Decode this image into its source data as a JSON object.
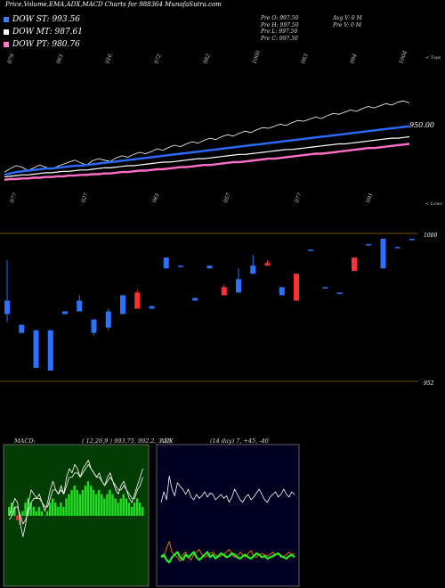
{
  "header": {
    "title": "Price,Volume,EMA,ADX,MACD Charts for 988364  MunafaSutra.com"
  },
  "legend": [
    {
      "label": "DOW ST: 993.56",
      "color": "#3b7dff"
    },
    {
      "label": "DOW MT: 987.61",
      "color": "#ffffff"
    },
    {
      "label": "DOW PT: 980.76",
      "color": "#ff77cc"
    }
  ],
  "ohlc": [
    "Pre  O: 997.50",
    "Pre  H: 997.50",
    "Pre  L: 997.50",
    "Pre  C: 997.50"
  ],
  "avg": [
    "Avg V: 0  M",
    "Pre  V: 0  M"
  ],
  "colors": {
    "up": "#2a72ff",
    "down": "#ff3030",
    "ema_st": "#2a6bff",
    "ema_pt": "#ff6fc8",
    "grid": "#6b5200"
  },
  "chart_data": [
    {
      "type": "line",
      "panel": "price-ema",
      "title": "",
      "top_tick_labels": [
        "979",
        "961",
        "916",
        "972",
        "982",
        "1000",
        "983",
        "994",
        "1004"
      ],
      "bottom_tick_labels": [
        "977",
        "927",
        "961",
        "957",
        "977",
        "991"
      ],
      "right_labels": {
        "top": "< Tops",
        "bottom": "< Lows",
        "level": "950.00"
      },
      "series": [
        {
          "name": "",
          "values": [
            910,
            915,
            919,
            917,
            912,
            916,
            920,
            917,
            914,
            918,
            921,
            924,
            927,
            923,
            920,
            926,
            929,
            927,
            925,
            930,
            933,
            931,
            935,
            938,
            936,
            939,
            943,
            941,
            945,
            948,
            946,
            950,
            953,
            951,
            955,
            958,
            956,
            960,
            963,
            961,
            965,
            968,
            966,
            970,
            973,
            972,
            975,
            978,
            976,
            980,
            983,
            982,
            985,
            988,
            986,
            990,
            993,
            992,
            995,
            998,
            996,
            1000,
            1003,
            1001,
            1004,
            1007,
            1005,
            1009,
            1011,
            1008
          ]
        },
        {
          "name": "DOW ST",
          "values": [
            906,
            908,
            910,
            911,
            912,
            913,
            914,
            915,
            915,
            916,
            917,
            918,
            919,
            919,
            920,
            921,
            922,
            923,
            924,
            925,
            926,
            927,
            928,
            929,
            930,
            931,
            932,
            933,
            934,
            935,
            936,
            937,
            938,
            939,
            940,
            941,
            942,
            943,
            944,
            945,
            946,
            947,
            948,
            949,
            950,
            951,
            952,
            953,
            954,
            955,
            956,
            957,
            958,
            959,
            960,
            961,
            962,
            963,
            964,
            965,
            966,
            967,
            968,
            969,
            970,
            971,
            972,
            973,
            974,
            975
          ]
        },
        {
          "name": "DOW MT",
          "values": [
            903,
            904,
            905,
            906,
            906,
            907,
            908,
            909,
            909,
            910,
            911,
            911,
            912,
            913,
            913,
            914,
            915,
            916,
            916,
            917,
            918,
            919,
            919,
            920,
            921,
            922,
            923,
            924,
            924,
            925,
            926,
            927,
            928,
            929,
            929,
            930,
            931,
            932,
            933,
            934,
            935,
            935,
            936,
            937,
            938,
            939,
            940,
            941,
            942,
            942,
            943,
            944,
            945,
            946,
            947,
            948,
            949,
            950,
            950,
            951,
            952,
            953,
            954,
            955,
            956,
            957,
            958,
            958,
            959,
            960
          ]
        },
        {
          "name": "DOW PT",
          "values": [
            899,
            900,
            900,
            901,
            901,
            902,
            902,
            903,
            903,
            904,
            904,
            905,
            905,
            906,
            906,
            907,
            907,
            908,
            908,
            909,
            910,
            910,
            911,
            912,
            912,
            913,
            914,
            914,
            915,
            916,
            917,
            917,
            918,
            919,
            920,
            920,
            921,
            922,
            923,
            924,
            924,
            925,
            926,
            927,
            928,
            929,
            929,
            930,
            931,
            932,
            933,
            934,
            935,
            936,
            936,
            937,
            938,
            939,
            940,
            941,
            942,
            943,
            944,
            944,
            945,
            946,
            947,
            948,
            949,
            950
          ]
        }
      ]
    },
    {
      "type": "bar",
      "panel": "candles",
      "right_labels": [
        "1000",
        "952"
      ],
      "candles": [
        {
          "open": 980,
          "close": 975,
          "high": 995,
          "low": 972
        },
        {
          "open": 971,
          "close": 968,
          "high": 971,
          "low": 968
        },
        {
          "open": 969,
          "close": 955,
          "high": 969,
          "low": 955
        },
        {
          "open": 969,
          "close": 954,
          "high": 969,
          "low": 954
        },
        {
          "open": 975,
          "close": 976,
          "high": 976,
          "low": 975
        },
        {
          "open": 980,
          "close": 976,
          "high": 982,
          "low": 976
        },
        {
          "open": 973,
          "close": 968,
          "high": 973,
          "low": 967
        },
        {
          "open": 976,
          "close": 970,
          "high": 977,
          "low": 969
        },
        {
          "open": 975,
          "close": 982,
          "high": 982,
          "low": 975
        },
        {
          "open": 983,
          "close": 977,
          "high": 984,
          "low": 977
        },
        {
          "open": 978,
          "close": 977,
          "high": 978,
          "low": 977
        },
        {
          "open": 996,
          "close": 992,
          "high": 996,
          "low": 992
        },
        {
          "open": 993,
          "close": 993,
          "high": 993,
          "low": 993
        },
        {
          "open": 981,
          "close": 980,
          "high": 981,
          "low": 980
        },
        {
          "open": 993,
          "close": 992,
          "high": 993,
          "low": 992
        },
        {
          "open": 985,
          "close": 982,
          "high": 986,
          "low": 982
        },
        {
          "open": 988,
          "close": 983,
          "high": 992,
          "low": 983
        },
        {
          "open": 990,
          "close": 993,
          "high": 997,
          "low": 990
        },
        {
          "open": 993,
          "close": 994,
          "high": 995,
          "low": 993
        },
        {
          "open": 985,
          "close": 982,
          "high": 985,
          "low": 982
        },
        {
          "open": 990,
          "close": 980,
          "high": 990,
          "low": 980
        },
        {
          "open": 999,
          "close": 999,
          "high": 999,
          "low": 999
        },
        {
          "open": 985,
          "close": 985,
          "high": 985,
          "low": 985
        },
        {
          "open": 983,
          "close": 983,
          "high": 983,
          "low": 983
        },
        {
          "open": 996,
          "close": 991,
          "high": 996,
          "low": 991
        },
        {
          "open": 1001,
          "close": 1001,
          "high": 1001,
          "low": 1001
        },
        {
          "open": 1003,
          "close": 992,
          "high": 1003,
          "low": 992
        },
        {
          "open": 1000,
          "close": 1000,
          "high": 1000,
          "low": 1000
        },
        {
          "open": 1003,
          "close": 1003,
          "high": 1003,
          "low": 1003
        }
      ],
      "candle_colors": [
        "up",
        "up",
        "up",
        "up",
        "up",
        "up",
        "up",
        "up",
        "up",
        "down",
        "up",
        "up",
        "up",
        "up",
        "up",
        "down",
        "up",
        "up",
        "down",
        "up",
        "down",
        "up",
        "up",
        "up",
        "down",
        "up",
        "up",
        "up",
        "up"
      ],
      "ylim": [
        950,
        1005
      ]
    },
    {
      "type": "line",
      "panel": "macd",
      "header": "MACD:",
      "params": "( 12,26,9 ) 993.75,  992.2,  3.55",
      "ylim": [
        -15,
        15
      ],
      "histogram": [
        2,
        3,
        2,
        -1,
        -2,
        1,
        3,
        4,
        3,
        2,
        1,
        2,
        1,
        0,
        1,
        3,
        4,
        3,
        2,
        3,
        2,
        4,
        5,
        6,
        7,
        6,
        5,
        6,
        7,
        8,
        7,
        6,
        5,
        6,
        5,
        4,
        5,
        6,
        5,
        4,
        3,
        4,
        5,
        4,
        3,
        2,
        3,
        4,
        3,
        2
      ],
      "series": [
        {
          "name": "",
          "values": [
            0,
            2,
            4,
            3,
            -2,
            -5,
            -2,
            3,
            6,
            5,
            4,
            5,
            3,
            1,
            3,
            6,
            8,
            6,
            5,
            7,
            5,
            9,
            11,
            10,
            12,
            11,
            9,
            11,
            12,
            13,
            11,
            10,
            9,
            10,
            8,
            7,
            9,
            10,
            8,
            6,
            5,
            7,
            8,
            6,
            4,
            3,
            5,
            7,
            9,
            11
          ]
        },
        {
          "name": "",
          "values": [
            -1,
            0,
            2,
            2,
            0,
            -2,
            -1,
            1,
            3,
            4,
            4,
            4,
            3,
            2,
            2,
            4,
            6,
            6,
            5,
            6,
            5,
            7,
            9,
            9,
            10,
            10,
            9,
            10,
            11,
            12,
            11,
            10,
            9,
            9,
            8,
            7,
            8,
            9,
            8,
            7,
            6,
            6,
            7,
            6,
            5,
            4,
            4,
            6,
            7,
            9
          ]
        }
      ]
    },
    {
      "type": "line",
      "panel": "adx",
      "header": "ADX",
      "params": "(14  day) 7,  +45,  -40",
      "ylim": [
        0,
        100
      ],
      "series": [
        {
          "name": "",
          "values": [
            60,
            68,
            62,
            80,
            70,
            65,
            75,
            72,
            70,
            66,
            70,
            64,
            62,
            66,
            63,
            65,
            68,
            64,
            67,
            66,
            62,
            64,
            66,
            63,
            65,
            60,
            64,
            70,
            66,
            62,
            60,
            64,
            66,
            62,
            64,
            67,
            70,
            66,
            62,
            60,
            64,
            66,
            68,
            64,
            66,
            70,
            66,
            64,
            68,
            66
          ]
        },
        {
          "name": "",
          "values": [
            20,
            18,
            25,
            30,
            22,
            20,
            18,
            15,
            20,
            22,
            18,
            16,
            20,
            22,
            24,
            20,
            18,
            19,
            21,
            22,
            20,
            18,
            19,
            20,
            22,
            24,
            20,
            18,
            19,
            22,
            20,
            18,
            21,
            23,
            19,
            18,
            20,
            21,
            20,
            19,
            20,
            22,
            20,
            21,
            18,
            19,
            20,
            22,
            20,
            21
          ]
        },
        {
          "name": "",
          "values": [
            18,
            20,
            16,
            14,
            18,
            20,
            22,
            18,
            16,
            20,
            18,
            20,
            22,
            18,
            16,
            18,
            20,
            22,
            18,
            20,
            17,
            19,
            21,
            20,
            18,
            19,
            21,
            20,
            18,
            17,
            19,
            20,
            18,
            17,
            19,
            21,
            20,
            18,
            19,
            17,
            18,
            19,
            20,
            21,
            19,
            18,
            17,
            19,
            20,
            18
          ]
        }
      ]
    }
  ]
}
